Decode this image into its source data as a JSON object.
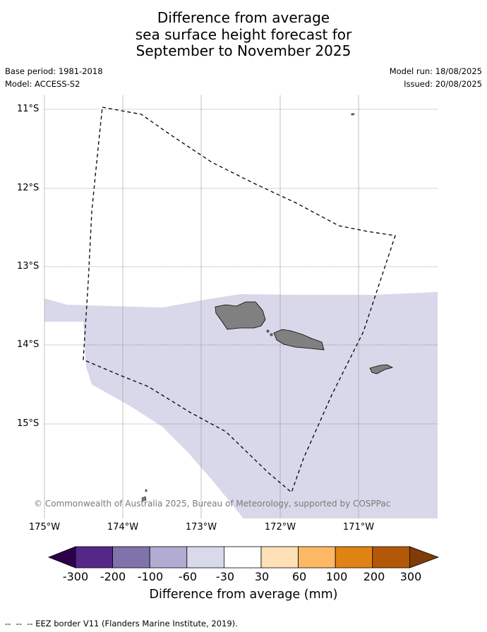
{
  "header": {
    "title_line1": "Difference from average",
    "title_line2": "sea surface height forecast for",
    "title_line3": "September to November 2025",
    "base_period": "Base period: 1981-2018",
    "model": "Model: ACCESS-S2",
    "model_run": "Model run: 18/08/2025",
    "issued": "Issued: 20/08/2025"
  },
  "map": {
    "lat_labels": [
      "11°S",
      "12°S",
      "13°S",
      "14°S",
      "15°S"
    ],
    "lon_labels": [
      "175°W",
      "174°W",
      "173°W",
      "172°W",
      "171°W"
    ],
    "copyright": "© Commonwealth of Australia 2025, Bureau of Meteorology, supported by COSPPac",
    "colors": {
      "forecast_fill": "#d8d8ea",
      "land": "#808080",
      "gridline": "#999999"
    },
    "legend_items": {
      "eez_border": "EEZ border V11 (Flanders Marine Institute, 2019)."
    }
  },
  "colorbar": {
    "labels": [
      "-300",
      "-200",
      "-100",
      "-60",
      "-30",
      "30",
      "60",
      "100",
      "200",
      "300"
    ],
    "colors": [
      "#2d004b",
      "#542788",
      "#8073ac",
      "#b2abd2",
      "#d8daeb",
      "#ffffff",
      "#fee0b6",
      "#fdb863",
      "#e08214",
      "#b35806",
      "#7f3b08"
    ],
    "title": "Difference from average (mm)"
  }
}
